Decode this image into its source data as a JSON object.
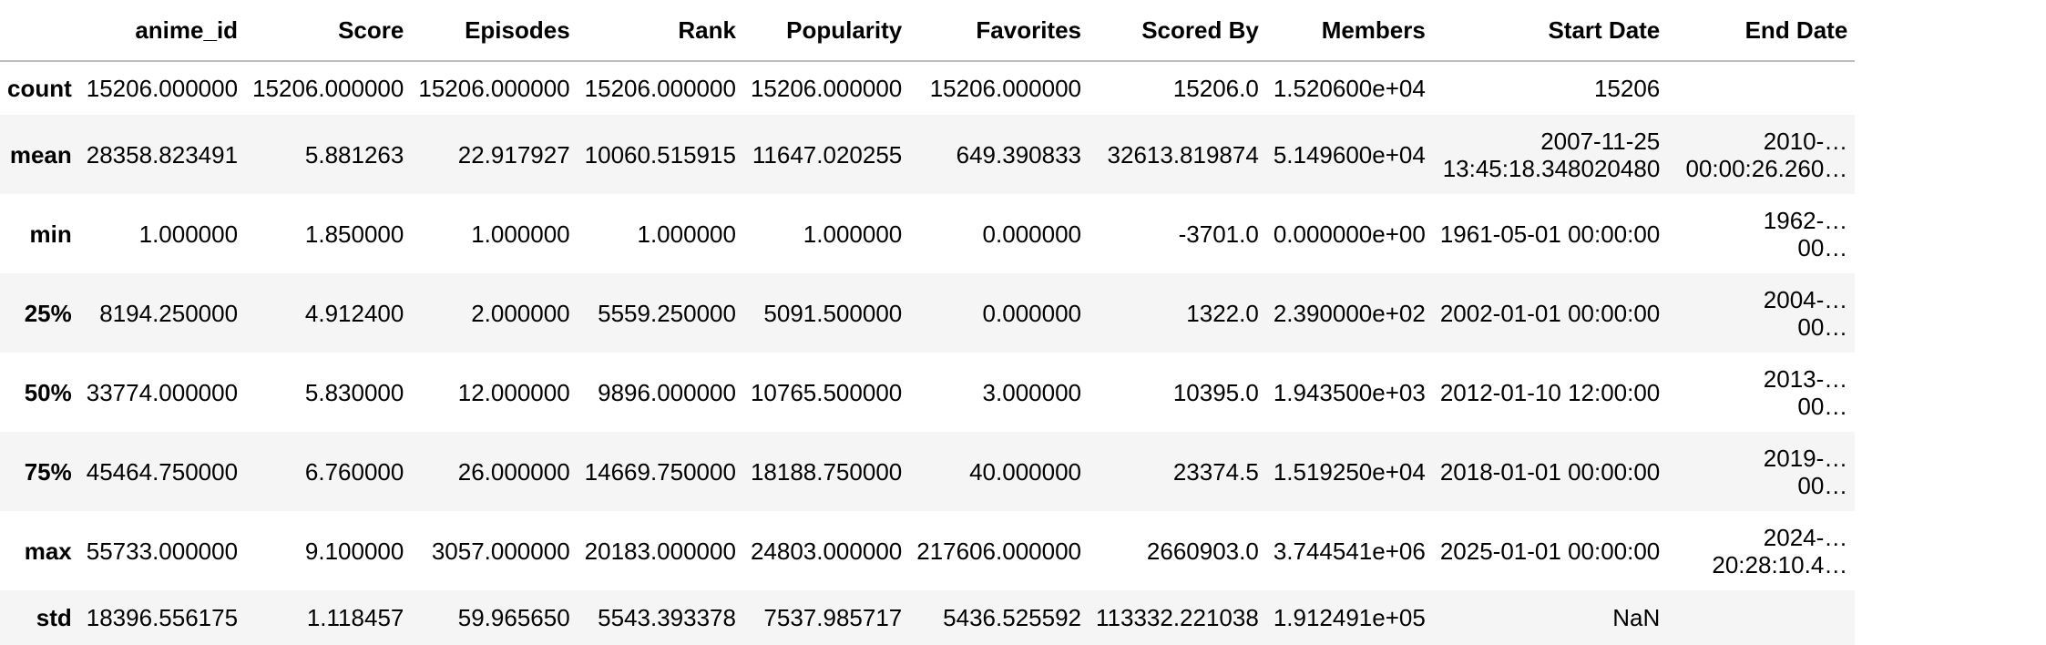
{
  "table": {
    "columns": [
      "",
      "anime_id",
      "Score",
      "Episodes",
      "Rank",
      "Popularity",
      "Favorites",
      "Scored By",
      "Members",
      "Start Date",
      "End Date"
    ],
    "rows": [
      {
        "label": "count",
        "cells": [
          "15206.000000",
          "15206.000000",
          "15206.000000",
          "15206.000000",
          "15206.000000",
          "15206.000000",
          "15206.0",
          "1.520600e+04",
          "15206",
          ""
        ]
      },
      {
        "label": "mean",
        "cells": [
          "28358.823491",
          "5.881263",
          "22.917927",
          "10060.515915",
          "11647.020255",
          "649.390833",
          "32613.819874",
          "5.149600e+04",
          "2007-11-25 13:45:18.348020480",
          "2010-…\n00:00:26.260…"
        ]
      },
      {
        "label": "min",
        "cells": [
          "1.000000",
          "1.850000",
          "1.000000",
          "1.000000",
          "1.000000",
          "0.000000",
          "-3701.0",
          "0.000000e+00",
          "1961-05-01 00:00:00",
          "1962-…\n00…"
        ]
      },
      {
        "label": "25%",
        "cells": [
          "8194.250000",
          "4.912400",
          "2.000000",
          "5559.250000",
          "5091.500000",
          "0.000000",
          "1322.0",
          "2.390000e+02",
          "2002-01-01 00:00:00",
          "2004-…\n00…"
        ]
      },
      {
        "label": "50%",
        "cells": [
          "33774.000000",
          "5.830000",
          "12.000000",
          "9896.000000",
          "10765.500000",
          "3.000000",
          "10395.0",
          "1.943500e+03",
          "2012-01-10 12:00:00",
          "2013-…\n00…"
        ]
      },
      {
        "label": "75%",
        "cells": [
          "45464.750000",
          "6.760000",
          "26.000000",
          "14669.750000",
          "18188.750000",
          "40.000000",
          "23374.5",
          "1.519250e+04",
          "2018-01-01 00:00:00",
          "2019-…\n00…"
        ]
      },
      {
        "label": "max",
        "cells": [
          "55733.000000",
          "9.100000",
          "3057.000000",
          "20183.000000",
          "24803.000000",
          "217606.000000",
          "2660903.0",
          "3.744541e+06",
          "2025-01-01 00:00:00",
          "2024-…\n20:28:10.4…"
        ]
      },
      {
        "label": "std",
        "cells": [
          "18396.556175",
          "1.118457",
          "59.965650",
          "5543.393378",
          "7537.985717",
          "5436.525592",
          "113332.221038",
          "1.912491e+05",
          "NaN",
          ""
        ]
      }
    ]
  }
}
